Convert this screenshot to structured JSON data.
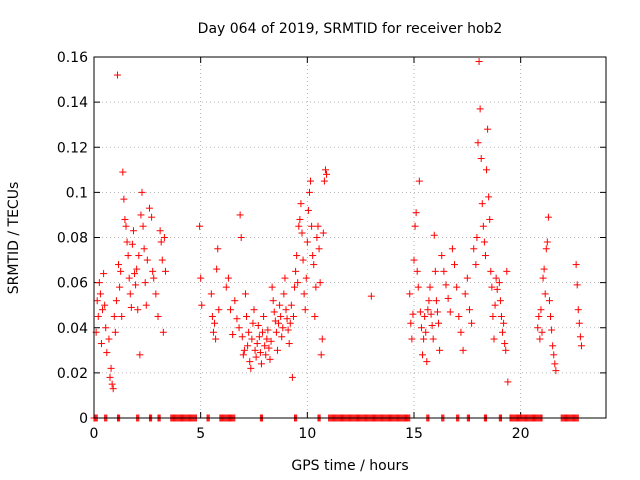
{
  "chart_data": {
    "type": "scatter",
    "title": "Day 064 of 2019, SRMTID for receiver hob2",
    "xlabel": "GPS time / hours",
    "ylabel": "SRMTID / TECUs",
    "xlim": [
      0,
      24
    ],
    "ylim": [
      0,
      0.16
    ],
    "xticks": [
      0,
      5,
      10,
      15,
      20
    ],
    "xtick_labels": [
      "0",
      "5",
      "10",
      "15",
      "20"
    ],
    "yticks": [
      0,
      0.02,
      0.04,
      0.06,
      0.08,
      0.1,
      0.12,
      0.14,
      0.16
    ],
    "ytick_labels": [
      "0",
      "0.02",
      "0.04",
      "0.06",
      "0.08",
      "0.1",
      "0.12",
      "0.14",
      "0.16"
    ],
    "grid": true,
    "marker": "+",
    "color": "#ff0000",
    "series": [
      {
        "name": "SRMTID",
        "points": [
          [
            0.1,
            0.038
          ],
          [
            0.15,
            0.052
          ],
          [
            0.2,
            0.045
          ],
          [
            0.25,
            0.06
          ],
          [
            0.3,
            0.055
          ],
          [
            0.35,
            0.033
          ],
          [
            0.4,
            0.048
          ],
          [
            0.45,
            0.064
          ],
          [
            0.5,
            0.05
          ],
          [
            0.55,
            0.04
          ],
          [
            0.6,
            0.029
          ],
          [
            0.7,
            0.035
          ],
          [
            0.75,
            0.018
          ],
          [
            0.8,
            0.022
          ],
          [
            0.85,
            0.015
          ],
          [
            0.9,
            0.013
          ],
          [
            0.95,
            0.045
          ],
          [
            1.0,
            0.038
          ],
          [
            1.05,
            0.052
          ],
          [
            1.1,
            0.152
          ],
          [
            1.15,
            0.068
          ],
          [
            1.2,
            0.058
          ],
          [
            1.25,
            0.065
          ],
          [
            1.3,
            0.045
          ],
          [
            1.35,
            0.109
          ],
          [
            1.4,
            0.097
          ],
          [
            1.45,
            0.088
          ],
          [
            1.5,
            0.085
          ],
          [
            1.55,
            0.078
          ],
          [
            1.6,
            0.072
          ],
          [
            1.65,
            0.062
          ],
          [
            1.7,
            0.055
          ],
          [
            1.75,
            0.049
          ],
          [
            1.8,
            0.077
          ],
          [
            1.85,
            0.083
          ],
          [
            1.9,
            0.064
          ],
          [
            1.95,
            0.059
          ],
          [
            2.0,
            0.066
          ],
          [
            2.05,
            0.048
          ],
          [
            2.1,
            0.072
          ],
          [
            2.15,
            0.028
          ],
          [
            2.2,
            0.09
          ],
          [
            2.25,
            0.1
          ],
          [
            2.3,
            0.085
          ],
          [
            2.35,
            0.075
          ],
          [
            2.4,
            0.06
          ],
          [
            2.45,
            0.05
          ],
          [
            2.5,
            0.07
          ],
          [
            2.6,
            0.093
          ],
          [
            2.7,
            0.089
          ],
          [
            2.75,
            0.065
          ],
          [
            2.8,
            0.062
          ],
          [
            2.9,
            0.055
          ],
          [
            3.0,
            0.045
          ],
          [
            3.1,
            0.083
          ],
          [
            3.15,
            0.078
          ],
          [
            3.2,
            0.07
          ],
          [
            3.25,
            0.038
          ],
          [
            3.3,
            0.08
          ],
          [
            3.35,
            0.065
          ],
          [
            4.95,
            0.085
          ],
          [
            5.0,
            0.062
          ],
          [
            5.05,
            0.05
          ],
          [
            5.5,
            0.055
          ],
          [
            5.55,
            0.045
          ],
          [
            5.6,
            0.038
          ],
          [
            5.65,
            0.042
          ],
          [
            5.7,
            0.035
          ],
          [
            5.75,
            0.066
          ],
          [
            5.8,
            0.075
          ],
          [
            5.85,
            0.048
          ],
          [
            6.2,
            0.058
          ],
          [
            6.3,
            0.062
          ],
          [
            6.4,
            0.048
          ],
          [
            6.5,
            0.037
          ],
          [
            6.6,
            0.052
          ],
          [
            6.7,
            0.044
          ],
          [
            6.8,
            0.04
          ],
          [
            6.85,
            0.09
          ],
          [
            6.9,
            0.08
          ],
          [
            6.95,
            0.036
          ],
          [
            7.0,
            0.028
          ],
          [
            7.05,
            0.03
          ],
          [
            7.1,
            0.055
          ],
          [
            7.15,
            0.045
          ],
          [
            7.2,
            0.032
          ],
          [
            7.25,
            0.038
          ],
          [
            7.3,
            0.025
          ],
          [
            7.35,
            0.022
          ],
          [
            7.4,
            0.035
          ],
          [
            7.45,
            0.042
          ],
          [
            7.5,
            0.048
          ],
          [
            7.55,
            0.03
          ],
          [
            7.6,
            0.027
          ],
          [
            7.65,
            0.033
          ],
          [
            7.7,
            0.041
          ],
          [
            7.75,
            0.036
          ],
          [
            7.8,
            0.029
          ],
          [
            7.85,
            0.024
          ],
          [
            7.9,
            0.038
          ],
          [
            7.95,
            0.045
          ],
          [
            8.0,
            0.032
          ],
          [
            8.05,
            0.028
          ],
          [
            8.1,
            0.035
          ],
          [
            8.15,
            0.039
          ],
          [
            8.2,
            0.031
          ],
          [
            8.25,
            0.026
          ],
          [
            8.3,
            0.034
          ],
          [
            8.35,
            0.058
          ],
          [
            8.4,
            0.052
          ],
          [
            8.45,
            0.047
          ],
          [
            8.5,
            0.043
          ],
          [
            8.55,
            0.038
          ],
          [
            8.6,
            0.03
          ],
          [
            8.65,
            0.042
          ],
          [
            8.7,
            0.05
          ],
          [
            8.75,
            0.045
          ],
          [
            8.8,
            0.036
          ],
          [
            8.85,
            0.04
          ],
          [
            8.9,
            0.055
          ],
          [
            8.95,
            0.062
          ],
          [
            9.0,
            0.048
          ],
          [
            9.05,
            0.044
          ],
          [
            9.1,
            0.039
          ],
          [
            9.15,
            0.033
          ],
          [
            9.2,
            0.042
          ],
          [
            9.25,
            0.05
          ],
          [
            9.3,
            0.018
          ],
          [
            9.35,
            0.045
          ],
          [
            9.4,
            0.058
          ],
          [
            9.45,
            0.065
          ],
          [
            9.5,
            0.072
          ],
          [
            9.55,
            0.06
          ],
          [
            9.6,
            0.085
          ],
          [
            9.65,
            0.088
          ],
          [
            9.7,
            0.095
          ],
          [
            9.75,
            0.082
          ],
          [
            9.8,
            0.07
          ],
          [
            9.85,
            0.055
          ],
          [
            9.9,
            0.048
          ],
          [
            9.95,
            0.062
          ],
          [
            10.0,
            0.078
          ],
          [
            10.05,
            0.092
          ],
          [
            10.1,
            0.1
          ],
          [
            10.15,
            0.105
          ],
          [
            10.2,
            0.085
          ],
          [
            10.25,
            0.072
          ],
          [
            10.3,
            0.068
          ],
          [
            10.35,
            0.045
          ],
          [
            10.4,
            0.058
          ],
          [
            10.45,
            0.08
          ],
          [
            10.5,
            0.085
          ],
          [
            10.55,
            0.075
          ],
          [
            10.6,
            0.06
          ],
          [
            10.65,
            0.028
          ],
          [
            10.7,
            0.035
          ],
          [
            10.75,
            0.082
          ],
          [
            10.8,
            0.105
          ],
          [
            10.85,
            0.11
          ],
          [
            10.9,
            0.108
          ],
          [
            13.0,
            0.054
          ],
          [
            14.8,
            0.055
          ],
          [
            14.85,
            0.042
          ],
          [
            14.9,
            0.035
          ],
          [
            14.95,
            0.046
          ],
          [
            15.0,
            0.07
          ],
          [
            15.05,
            0.085
          ],
          [
            15.1,
            0.091
          ],
          [
            15.15,
            0.065
          ],
          [
            15.2,
            0.058
          ],
          [
            15.25,
            0.105
          ],
          [
            15.3,
            0.047
          ],
          [
            15.35,
            0.04
          ],
          [
            15.4,
            0.028
          ],
          [
            15.45,
            0.035
          ],
          [
            15.5,
            0.045
          ],
          [
            15.55,
            0.038
          ],
          [
            15.6,
            0.025
          ],
          [
            15.65,
            0.048
          ],
          [
            15.7,
            0.052
          ],
          [
            15.75,
            0.058
          ],
          [
            15.8,
            0.046
          ],
          [
            15.85,
            0.041
          ],
          [
            15.9,
            0.035
          ],
          [
            15.95,
            0.081
          ],
          [
            16.0,
            0.065
          ],
          [
            16.05,
            0.052
          ],
          [
            16.1,
            0.047
          ],
          [
            16.15,
            0.042
          ],
          [
            16.2,
            0.03
          ],
          [
            16.3,
            0.072
          ],
          [
            16.4,
            0.065
          ],
          [
            16.5,
            0.059
          ],
          [
            16.6,
            0.053
          ],
          [
            16.7,
            0.047
          ],
          [
            16.8,
            0.075
          ],
          [
            16.9,
            0.068
          ],
          [
            17.0,
            0.058
          ],
          [
            17.1,
            0.045
          ],
          [
            17.2,
            0.038
          ],
          [
            17.3,
            0.03
          ],
          [
            17.4,
            0.055
          ],
          [
            17.5,
            0.062
          ],
          [
            17.6,
            0.048
          ],
          [
            17.7,
            0.042
          ],
          [
            17.8,
            0.075
          ],
          [
            17.9,
            0.068
          ],
          [
            17.95,
            0.08
          ],
          [
            18.0,
            0.122
          ],
          [
            18.05,
            0.158
          ],
          [
            18.1,
            0.137
          ],
          [
            18.15,
            0.115
          ],
          [
            18.2,
            0.095
          ],
          [
            18.25,
            0.085
          ],
          [
            18.3,
            0.078
          ],
          [
            18.35,
            0.072
          ],
          [
            18.4,
            0.11
          ],
          [
            18.45,
            0.128
          ],
          [
            18.5,
            0.098
          ],
          [
            18.55,
            0.088
          ],
          [
            18.6,
            0.065
          ],
          [
            18.65,
            0.058
          ],
          [
            18.7,
            0.045
          ],
          [
            18.75,
            0.035
          ],
          [
            18.8,
            0.05
          ],
          [
            18.85,
            0.062
          ],
          [
            18.9,
            0.057
          ],
          [
            19.0,
            0.06
          ],
          [
            19.05,
            0.052
          ],
          [
            19.1,
            0.045
          ],
          [
            19.15,
            0.038
          ],
          [
            19.2,
            0.042
          ],
          [
            19.25,
            0.033
          ],
          [
            19.3,
            0.03
          ],
          [
            19.35,
            0.065
          ],
          [
            19.4,
            0.016
          ],
          [
            20.8,
            0.04
          ],
          [
            20.85,
            0.045
          ],
          [
            20.9,
            0.035
          ],
          [
            20.95,
            0.048
          ],
          [
            21.0,
            0.038
          ],
          [
            21.05,
            0.062
          ],
          [
            21.1,
            0.066
          ],
          [
            21.15,
            0.055
          ],
          [
            21.2,
            0.075
          ],
          [
            21.25,
            0.078
          ],
          [
            21.3,
            0.089
          ],
          [
            21.35,
            0.052
          ],
          [
            21.4,
            0.045
          ],
          [
            21.45,
            0.039
          ],
          [
            21.5,
            0.032
          ],
          [
            21.55,
            0.028
          ],
          [
            21.6,
            0.024
          ],
          [
            21.65,
            0.021
          ],
          [
            22.6,
            0.068
          ],
          [
            22.65,
            0.059
          ],
          [
            22.7,
            0.048
          ],
          [
            22.75,
            0.042
          ],
          [
            22.8,
            0.036
          ],
          [
            22.85,
            0.032
          ]
        ],
        "zero_segments": [
          [
            0.0,
            0.15
          ],
          [
            0.5,
            0.6
          ],
          [
            1.1,
            1.2
          ],
          [
            2.0,
            2.1
          ],
          [
            2.6,
            2.7
          ],
          [
            3.0,
            3.1
          ],
          [
            3.6,
            4.8
          ],
          [
            5.3,
            5.4
          ],
          [
            5.9,
            6.6
          ],
          [
            7.8,
            7.9
          ],
          [
            9.4,
            9.5
          ],
          [
            10.5,
            10.6
          ],
          [
            11.0,
            14.8
          ],
          [
            15.6,
            15.7
          ],
          [
            16.3,
            16.4
          ],
          [
            17.0,
            17.1
          ],
          [
            17.5,
            17.6
          ],
          [
            18.3,
            18.4
          ],
          [
            19.0,
            19.1
          ],
          [
            19.5,
            21.0
          ],
          [
            21.9,
            22.7
          ]
        ]
      }
    ]
  }
}
